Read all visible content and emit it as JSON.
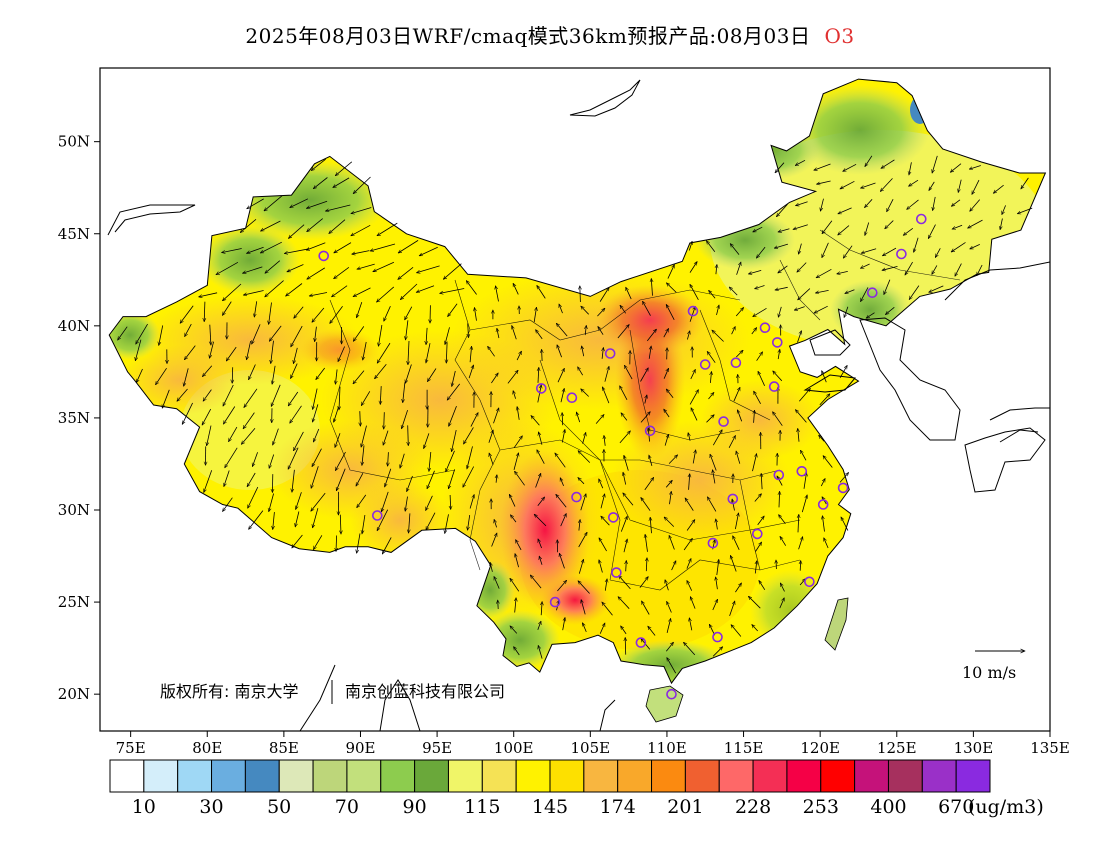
{
  "title": "2025年08月03日WRF/cmaq模式36km预报产品:08月03日",
  "species": "O3",
  "map": {
    "lon_range": [
      73,
      135
    ],
    "lat_range": [
      18,
      54
    ],
    "lat_ticks": [
      {
        "value": 50,
        "label": "50N"
      },
      {
        "value": 45,
        "label": "45N"
      },
      {
        "value": 40,
        "label": "40N"
      },
      {
        "value": 35,
        "label": "35N"
      },
      {
        "value": 30,
        "label": "30N"
      },
      {
        "value": 25,
        "label": "25N"
      },
      {
        "value": 20,
        "label": "20N"
      }
    ],
    "lon_ticks": [
      {
        "value": 75,
        "label": "75E"
      },
      {
        "value": 80,
        "label": "80E"
      },
      {
        "value": 85,
        "label": "85E"
      },
      {
        "value": 90,
        "label": "90E"
      },
      {
        "value": 95,
        "label": "95E"
      },
      {
        "value": 100,
        "label": "100E"
      },
      {
        "value": 105,
        "label": "105E"
      },
      {
        "value": 110,
        "label": "110E"
      },
      {
        "value": 115,
        "label": "115E"
      },
      {
        "value": 120,
        "label": "120E"
      },
      {
        "value": 125,
        "label": "125E"
      },
      {
        "value": 130,
        "label": "130E"
      },
      {
        "value": 135,
        "label": "135E"
      }
    ],
    "copyright": "版权所有: 南京大学",
    "copyright2": "南京创蓝科技有限公司",
    "wind_scale_label": "10 m/s",
    "cities": [
      {
        "lon": 87.6,
        "lat": 43.8
      },
      {
        "lon": 91.1,
        "lat": 29.7
      },
      {
        "lon": 101.8,
        "lat": 36.6
      },
      {
        "lon": 103.8,
        "lat": 36.1
      },
      {
        "lon": 106.3,
        "lat": 38.5
      },
      {
        "lon": 111.7,
        "lat": 40.8
      },
      {
        "lon": 116.4,
        "lat": 39.9
      },
      {
        "lon": 117.2,
        "lat": 39.1
      },
      {
        "lon": 114.5,
        "lat": 38.0
      },
      {
        "lon": 112.5,
        "lat": 37.9
      },
      {
        "lon": 117.0,
        "lat": 36.7
      },
      {
        "lon": 113.7,
        "lat": 34.8
      },
      {
        "lon": 108.9,
        "lat": 34.3
      },
      {
        "lon": 104.1,
        "lat": 30.7
      },
      {
        "lon": 106.5,
        "lat": 29.6
      },
      {
        "lon": 106.7,
        "lat": 26.6
      },
      {
        "lon": 102.7,
        "lat": 25.0
      },
      {
        "lon": 108.3,
        "lat": 22.8
      },
      {
        "lon": 113.3,
        "lat": 23.1
      },
      {
        "lon": 110.3,
        "lat": 20.0
      },
      {
        "lon": 113.0,
        "lat": 28.2
      },
      {
        "lon": 115.9,
        "lat": 28.7
      },
      {
        "lon": 114.3,
        "lat": 30.6
      },
      {
        "lon": 117.3,
        "lat": 31.9
      },
      {
        "lon": 118.8,
        "lat": 32.1
      },
      {
        "lon": 121.5,
        "lat": 31.2
      },
      {
        "lon": 120.2,
        "lat": 30.3
      },
      {
        "lon": 119.3,
        "lat": 26.1
      },
      {
        "lon": 123.4,
        "lat": 41.8
      },
      {
        "lon": 125.3,
        "lat": 43.9
      },
      {
        "lon": 126.6,
        "lat": 45.8
      }
    ]
  },
  "legend": {
    "colors": [
      "#ffffff",
      "#d4eefa",
      "#9fd8f5",
      "#6aaee0",
      "#4589c0",
      "#dde8b8",
      "#bdd67a",
      "#c2e07c",
      "#8dcc4e",
      "#6aa83a",
      "#f0f568",
      "#f5e255",
      "#fff200",
      "#fde000",
      "#f8b640",
      "#f9a82a",
      "#fb8a10",
      "#f06030",
      "#fe6868",
      "#f42f55",
      "#f50046",
      "#ff0000",
      "#c5127a",
      "#a6305e",
      "#9a30c8",
      "#8a2ae0"
    ],
    "labels": [
      "10",
      "30",
      "50",
      "70",
      "90",
      "115",
      "145",
      "174",
      "201",
      "228",
      "253",
      "400",
      "670"
    ],
    "unit": "(ug/m3)"
  }
}
